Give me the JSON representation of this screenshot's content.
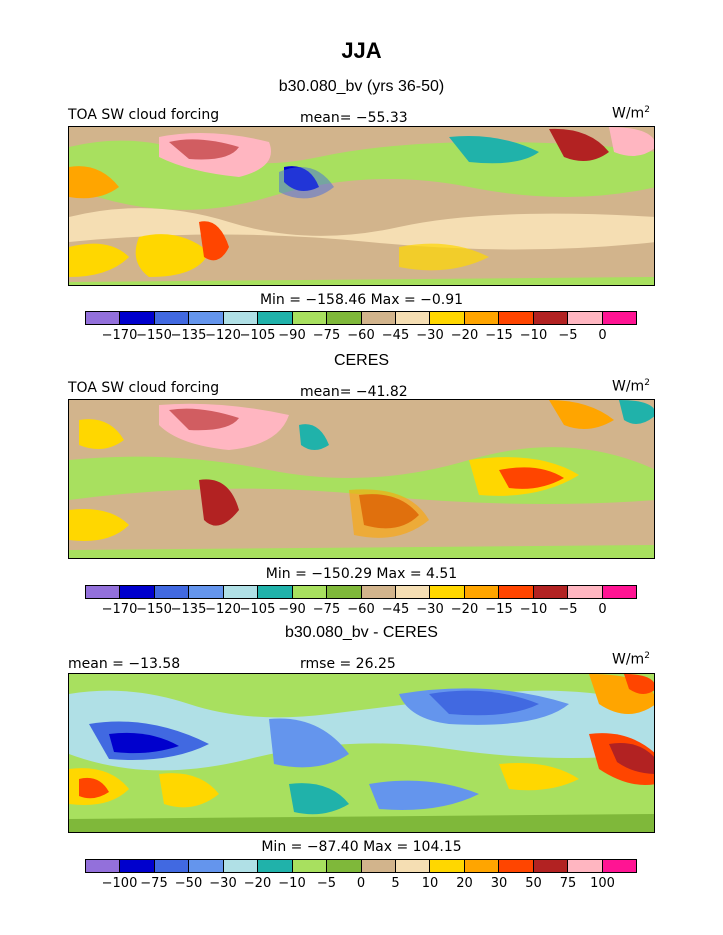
{
  "page": {
    "season": "JJA",
    "panel1_title": "b30.080_bv (yrs 36-50)",
    "panel2_title": "CERES",
    "panel3_title": "b30.080_bv - CERES"
  },
  "panels": [
    {
      "left_label": "TOA SW cloud forcing",
      "center_label": "mean= −55.33",
      "units": "W/m",
      "units_sup": "2",
      "minmax": "Min = −158.46  Max =   −0.91"
    },
    {
      "left_label": "TOA SW cloud forcing",
      "center_label": "mean= −41.82",
      "units": "W/m",
      "units_sup": "2",
      "minmax": "Min = −150.29  Max =    4.51"
    },
    {
      "left_label": "mean = −13.58",
      "center_label": "rmse =  26.25",
      "units": "W/m",
      "units_sup": "2",
      "minmax": "Min = −87.40  Max =  104.15"
    }
  ],
  "colorbar": {
    "colors": [
      "#9370db",
      "#0000cd",
      "#4169e1",
      "#6495ed",
      "#b0e0e6",
      "#20b2aa",
      "#a8e05f",
      "#7fb83a",
      "#d2b48c",
      "#f5deb3",
      "#ffd700",
      "#ffa500",
      "#ff4500",
      "#b22222",
      "#ffb6c1",
      "#ff1493"
    ],
    "ticks_abs": [
      "−170",
      "−150",
      "−135",
      "−120",
      "−105",
      "−90",
      "−75",
      "−60",
      "−45",
      "−30",
      "−20",
      "−15",
      "−10",
      "−5",
      "0"
    ],
    "ticks_diff": [
      "−100",
      "−75",
      "−50",
      "−30",
      "−20",
      "−10",
      "−5",
      "0",
      "5",
      "10",
      "20",
      "30",
      "50",
      "75",
      "100"
    ]
  }
}
